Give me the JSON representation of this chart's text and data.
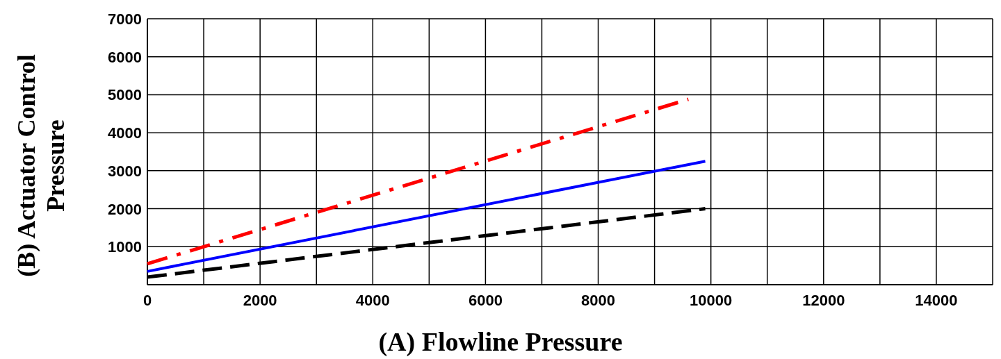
{
  "chart_data": {
    "type": "line",
    "xlabel": "(A) Flowline Pressure",
    "ylabel": "(B) Actuator Control\nPressure",
    "xlim": [
      0,
      15000
    ],
    "ylim": [
      0,
      7000
    ],
    "xticks": [
      0,
      {
        "value": 1000,
        "label": null
      },
      2000,
      {
        "value": 3000,
        "label": null
      },
      4000,
      {
        "value": 5000,
        "label": null
      },
      6000,
      {
        "value": 7000,
        "label": null
      },
      8000,
      {
        "value": 9000,
        "label": null
      },
      10000,
      {
        "value": 11000,
        "label": null
      },
      12000,
      {
        "value": 13000,
        "label": null
      },
      14000
    ],
    "yticks": [
      {
        "value": 0,
        "label": null
      },
      1000,
      2000,
      3000,
      4000,
      5000,
      6000,
      7000
    ],
    "grid": true,
    "marker": "none",
    "series": [
      {
        "color": "#ff0000",
        "line_style": "dashdot",
        "x": [
          0,
          9600
        ],
        "values": [
          550,
          4880
        ]
      },
      {
        "color": "#0000ff",
        "line_style": "solid",
        "x": [
          0,
          9900
        ],
        "values": [
          350,
          3250
        ]
      },
      {
        "color": "#000000",
        "line_style": "dashed",
        "x": [
          0,
          9900
        ],
        "values": [
          200,
          2000
        ]
      }
    ]
  }
}
